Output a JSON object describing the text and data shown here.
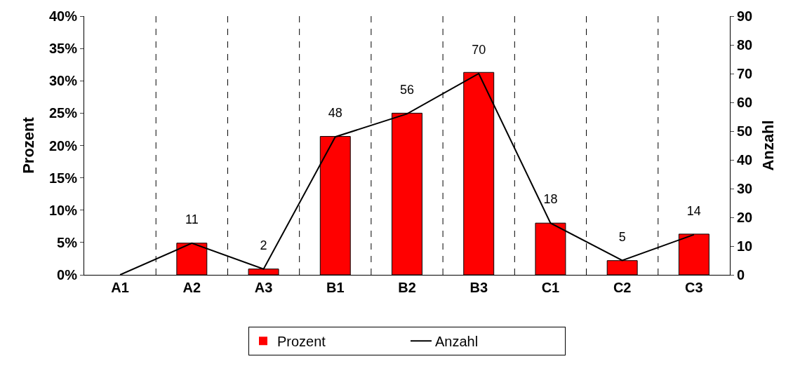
{
  "chart_data": {
    "type": "bar",
    "categories": [
      "A1",
      "A2",
      "A3",
      "B1",
      "B2",
      "B3",
      "C1",
      "C2",
      "C3"
    ],
    "series": [
      {
        "name": "Prozent",
        "color": "#ff0000",
        "values": [
          0,
          4.9,
          0.9,
          21.4,
          25.0,
          31.3,
          8.0,
          2.2,
          6.3
        ]
      },
      {
        "name": "Anzahl",
        "type": "line",
        "axis": "y2",
        "color": "#000000",
        "values": [
          0,
          11,
          2,
          48,
          56,
          70,
          18,
          5,
          14
        ],
        "value_labels": [
          null,
          "11",
          "2",
          "48",
          "56",
          "70",
          "18",
          "5",
          "14"
        ]
      }
    ],
    "ylabel": "Prozent",
    "y2label": "Anzahl",
    "ylim": [
      0,
      40
    ],
    "yticks": [
      {
        "value": 0,
        "label": "0%"
      },
      {
        "value": 5,
        "label": "5%"
      },
      {
        "value": 10,
        "label": "10%"
      },
      {
        "value": 15,
        "label": "15%"
      },
      {
        "value": 20,
        "label": "20%"
      },
      {
        "value": 25,
        "label": "25%"
      },
      {
        "value": 30,
        "label": "30%"
      },
      {
        "value": 35,
        "label": "35%"
      },
      {
        "value": 40,
        "label": "40%"
      }
    ],
    "y2lim": [
      0,
      90
    ],
    "y2ticks": [
      0,
      10,
      20,
      30,
      40,
      50,
      60,
      70,
      80,
      90
    ],
    "grid": "x",
    "legend": "bottom",
    "marker": "none"
  }
}
